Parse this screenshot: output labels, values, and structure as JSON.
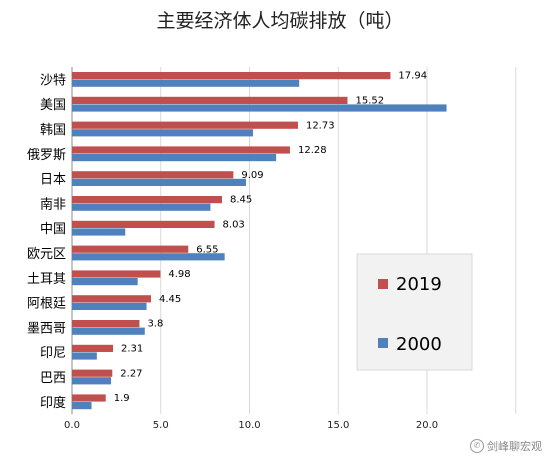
{
  "chart_data": {
    "type": "bar",
    "orientation": "horizontal",
    "title": "主要经济体人均碳排放（吨）",
    "categories": [
      "沙特",
      "美国",
      "韩国",
      "俄罗斯",
      "日本",
      "南非",
      "中国",
      "欧元区",
      "土耳其",
      "阿根廷",
      "墨西哥",
      "印尼",
      "巴西",
      "印度"
    ],
    "series": [
      {
        "name": "2019",
        "color": "#c0504d",
        "values": [
          17.94,
          15.52,
          12.73,
          12.28,
          9.09,
          8.45,
          8.03,
          6.55,
          4.98,
          4.45,
          3.8,
          2.31,
          2.27,
          1.9
        ],
        "labels": [
          "17.94",
          "15.52",
          "12.73",
          "12.28",
          "9.09",
          "8.45",
          "8.03",
          "6.55",
          "4.98",
          "4.45",
          "3.8",
          "2.31",
          "2.27",
          "1.9"
        ]
      },
      {
        "name": "2000",
        "color": "#4f81bd",
        "values": [
          12.8,
          21.1,
          10.2,
          11.5,
          9.8,
          7.8,
          3.0,
          8.6,
          3.7,
          4.2,
          4.1,
          1.4,
          2.2,
          1.1
        ]
      }
    ],
    "xlim": [
      0,
      25
    ],
    "xticks": [
      "0.0",
      "5.0",
      "10.0",
      "15.0",
      "20.0"
    ],
    "grid": true,
    "legend_position": "right"
  },
  "watermark": {
    "text": "剑峰聊宏观",
    "icon": "wechat-icon"
  }
}
